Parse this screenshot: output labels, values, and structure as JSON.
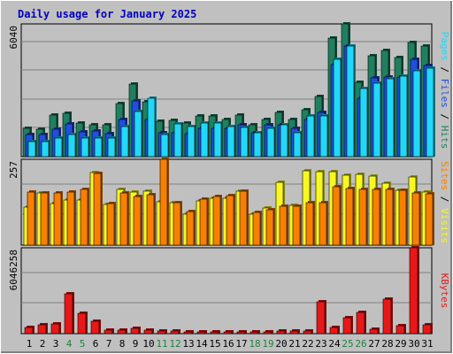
{
  "title": "Daily usage for January 2025",
  "colors": {
    "hits": "#1f8060",
    "files": "#1f4fe0",
    "pages": "#20d8f8",
    "visits": "#f8f820",
    "sites": "#f88000",
    "kbytes": "#e81818",
    "weekend_day": "#208040",
    "weekday": "#000000"
  },
  "day_labels": [
    "1",
    "2",
    "3",
    "4",
    "5",
    "6",
    "7",
    "8",
    "9",
    "10",
    "11",
    "12",
    "13",
    "14",
    "15",
    "16",
    "17",
    "18",
    "19",
    "20",
    "21",
    "22",
    "23",
    "24",
    "25",
    "26",
    "27",
    "28",
    "29",
    "30",
    "31"
  ],
  "weekend_days": [
    4,
    5,
    11,
    12,
    18,
    19,
    25,
    26
  ],
  "chart_data": [
    {
      "type": "bar",
      "panel": "top",
      "ylim": [
        0,
        6040
      ],
      "max_tick_label": "6040",
      "side_labels": {
        "pages": "Pages",
        "files": "Files",
        "hits": "Hits",
        "separator": " / "
      },
      "categories": [
        "1",
        "2",
        "3",
        "4",
        "5",
        "6",
        "7",
        "8",
        "9",
        "10",
        "11",
        "12",
        "13",
        "14",
        "15",
        "16",
        "17",
        "18",
        "19",
        "20",
        "21",
        "22",
        "23",
        "24",
        "25",
        "26",
        "27",
        "28",
        "29",
        "30",
        "31"
      ],
      "series": [
        {
          "name": "Hits",
          "values": [
            1300,
            1250,
            1880,
            1980,
            1550,
            1460,
            1450,
            2400,
            3300,
            2500,
            1600,
            1650,
            1550,
            1850,
            1850,
            1700,
            1900,
            1450,
            1700,
            2000,
            1700,
            2140,
            2750,
            5400,
            6040,
            3390,
            4600,
            4840,
            4500,
            5200,
            5050
          ]
        },
        {
          "name": "Files",
          "values": [
            1000,
            990,
            1250,
            1490,
            1120,
            1150,
            1050,
            1680,
            2520,
            1710,
            1100,
            1080,
            1050,
            1280,
            1300,
            1280,
            1450,
            1100,
            1450,
            1450,
            1280,
            1680,
            2030,
            4180,
            5020,
            2660,
            3590,
            3630,
            3610,
            4430,
            4140
          ]
        },
        {
          "name": "Pages",
          "values": [
            700,
            700,
            850,
            990,
            850,
            850,
            830,
            1350,
            2060,
            2640,
            1020,
            1480,
            1370,
            1510,
            1510,
            1380,
            1320,
            1070,
            1300,
            1450,
            1100,
            1850,
            1850,
            4420,
            5020,
            3100,
            3350,
            3550,
            3650,
            3900,
            4040
          ]
        }
      ]
    },
    {
      "type": "bar",
      "panel": "middle",
      "ylim": [
        0,
        257
      ],
      "max_tick_label": "257",
      "side_labels": {
        "sites": "Sites",
        "visits": "Visits",
        "separator": " / "
      },
      "categories": [
        "1",
        "2",
        "3",
        "4",
        "5",
        "6",
        "7",
        "8",
        "9",
        "10",
        "11",
        "12",
        "13",
        "14",
        "15",
        "16",
        "17",
        "18",
        "19",
        "20",
        "21",
        "22",
        "23",
        "24",
        "25",
        "26",
        "27",
        "28",
        "29",
        "30",
        "31"
      ],
      "series": [
        {
          "name": "Visits",
          "values": [
            114,
            156,
            125,
            135,
            136,
            217,
            123,
            168,
            160,
            162,
            130,
            126,
            93,
            133,
            141,
            140,
            162,
            92,
            112,
            188,
            119,
            223,
            221,
            221,
            208,
            211,
            207,
            186,
            165,
            204,
            158
          ]
        },
        {
          "name": "Sites",
          "values": [
            158,
            156,
            156,
            160,
            168,
            214,
            125,
            156,
            146,
            152,
            257,
            128,
            100,
            138,
            145,
            148,
            162,
            98,
            106,
            116,
            117,
            128,
            128,
            175,
            170,
            168,
            168,
            168,
            165,
            157,
            153
          ]
        }
      ]
    },
    {
      "type": "bar",
      "panel": "bottom",
      "ylim": [
        0,
        6046258
      ],
      "max_tick_label": "6046258",
      "side_labels": {
        "kbytes": "KBytes"
      },
      "categories": [
        "1",
        "2",
        "3",
        "4",
        "5",
        "6",
        "7",
        "8",
        "9",
        "10",
        "11",
        "12",
        "13",
        "14",
        "15",
        "16",
        "17",
        "18",
        "19",
        "20",
        "21",
        "22",
        "23",
        "24",
        "25",
        "26",
        "27",
        "28",
        "29",
        "30",
        "31"
      ],
      "series": [
        {
          "name": "KBytes",
          "values": [
            450000,
            620000,
            690000,
            2800000,
            1460000,
            860000,
            250000,
            240000,
            350000,
            230000,
            200000,
            210000,
            140000,
            150000,
            150000,
            110000,
            100000,
            110000,
            150000,
            210000,
            160000,
            200000,
            2250000,
            450000,
            1120000,
            1490000,
            300000,
            2450000,
            550000,
            6046258,
            640000
          ]
        }
      ]
    }
  ]
}
